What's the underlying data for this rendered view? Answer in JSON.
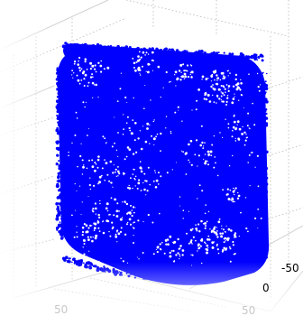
{
  "chart_data": {
    "type": "scatter",
    "title": "",
    "xlabel": "",
    "ylabel": "",
    "zlabel": "",
    "grid": true,
    "color": "#0000ff",
    "tick_labels": {
      "right_axis": [
        "-50",
        "0"
      ],
      "bottom_axis": [
        "50",
        "50"
      ]
    }
  }
}
